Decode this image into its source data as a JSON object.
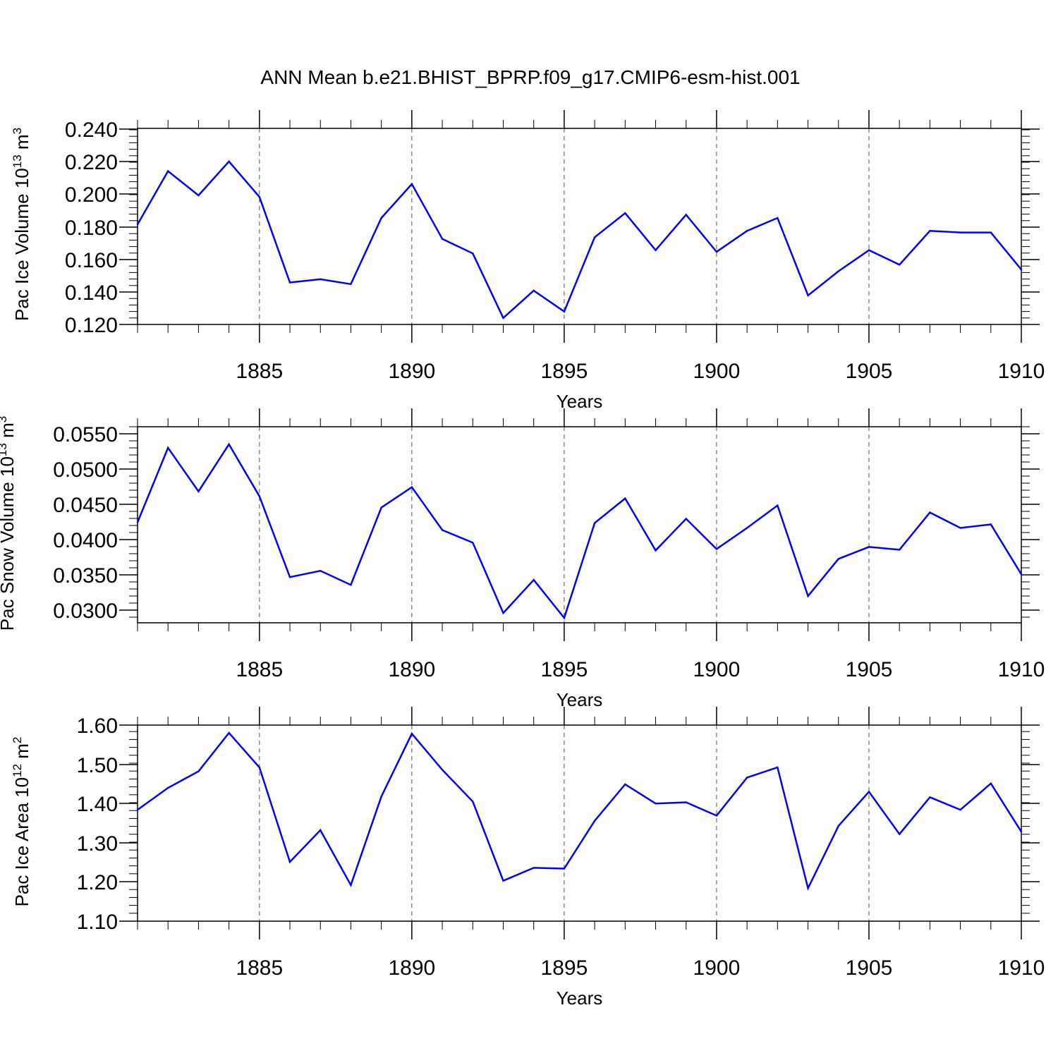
{
  "title": "ANN Mean b.e21.BHIST_BPRP.f09_g17.CMIP6-esm-hist.001",
  "line_color": "#0000ff",
  "chart_data": [
    {
      "type": "line",
      "ylabel": "Pac Ice Volume 10",
      "ylabel_exp": "13",
      "ylabel_unit": "m",
      "ylabel_unit_exp": "3",
      "xlabel": "Years",
      "xlim": [
        1881,
        1910
      ],
      "ylim": [
        0.12,
        0.2415
      ],
      "yticks": [
        "0.120",
        "0.140",
        "0.160",
        "0.180",
        "0.200",
        "0.220",
        "0.240"
      ],
      "xticks": [
        "1885",
        "1890",
        "1895",
        "1900",
        "1905",
        "1910"
      ],
      "x": [
        1881,
        1882,
        1883,
        1884,
        1885,
        1886,
        1887,
        1888,
        1889,
        1890,
        1891,
        1892,
        1893,
        1894,
        1895,
        1896,
        1897,
        1898,
        1899,
        1900,
        1901,
        1902,
        1903,
        1904,
        1905,
        1906,
        1907,
        1908,
        1909,
        1910
      ],
      "values": [
        0.182,
        0.215,
        0.2,
        0.221,
        0.199,
        0.146,
        0.148,
        0.145,
        0.186,
        0.207,
        0.173,
        0.164,
        0.124,
        0.141,
        0.128,
        0.174,
        0.189,
        0.166,
        0.188,
        0.165,
        0.178,
        0.186,
        0.138,
        0.153,
        0.166,
        0.157,
        0.178,
        0.177,
        0.177,
        0.154
      ]
    },
    {
      "type": "line",
      "ylabel": "Pac Snow Volume 10",
      "ylabel_exp": "13",
      "ylabel_unit": "m",
      "ylabel_unit_exp": "3",
      "xlabel": "Years",
      "xlim": [
        1881,
        1910
      ],
      "ylim": [
        0.0282,
        0.0561
      ],
      "yticks": [
        "0.0300",
        "0.0350",
        "0.0400",
        "0.0450",
        "0.0500",
        "0.0550"
      ],
      "xticks": [
        "1885",
        "1890",
        "1895",
        "1900",
        "1905",
        "1910"
      ],
      "x": [
        1881,
        1882,
        1883,
        1884,
        1885,
        1886,
        1887,
        1888,
        1889,
        1890,
        1891,
        1892,
        1893,
        1894,
        1895,
        1896,
        1897,
        1898,
        1899,
        1900,
        1901,
        1902,
        1903,
        1904,
        1905,
        1906,
        1907,
        1908,
        1909,
        1910
      ],
      "values": [
        0.0425,
        0.0531,
        0.0469,
        0.0536,
        0.0462,
        0.0347,
        0.0356,
        0.0336,
        0.0446,
        0.0475,
        0.0414,
        0.0396,
        0.0296,
        0.0343,
        0.0289,
        0.0424,
        0.0459,
        0.0385,
        0.043,
        0.0387,
        0.0417,
        0.0449,
        0.032,
        0.0373,
        0.039,
        0.0386,
        0.0439,
        0.0417,
        0.0422,
        0.0351
      ]
    },
    {
      "type": "line",
      "ylabel": "Pac Ice Area 10",
      "ylabel_exp": "12",
      "ylabel_unit": "m",
      "ylabel_unit_exp": "2",
      "xlabel": "Years",
      "xlim": [
        1881,
        1910
      ],
      "ylim": [
        1.1,
        1.6
      ],
      "yticks": [
        "1.10",
        "1.20",
        "1.30",
        "1.40",
        "1.50",
        "1.60"
      ],
      "xticks": [
        "1885",
        "1890",
        "1895",
        "1900",
        "1905",
        "1910"
      ],
      "x": [
        1881,
        1882,
        1883,
        1884,
        1885,
        1886,
        1887,
        1888,
        1889,
        1890,
        1891,
        1892,
        1893,
        1894,
        1895,
        1896,
        1897,
        1898,
        1899,
        1900,
        1901,
        1902,
        1903,
        1904,
        1905,
        1906,
        1907,
        1908,
        1909,
        1910
      ],
      "values": [
        1.384,
        1.44,
        1.482,
        1.58,
        1.492,
        1.251,
        1.332,
        1.192,
        1.418,
        1.578,
        1.486,
        1.405,
        1.203,
        1.236,
        1.234,
        1.356,
        1.449,
        1.4,
        1.403,
        1.369,
        1.466,
        1.492,
        1.184,
        1.343,
        1.43,
        1.322,
        1.416,
        1.384,
        1.451,
        1.328
      ]
    }
  ]
}
